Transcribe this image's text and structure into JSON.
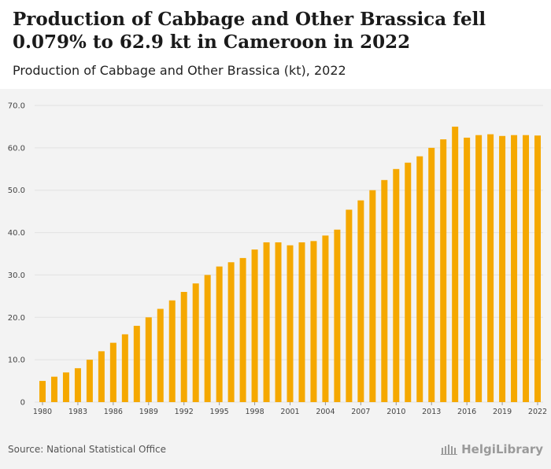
{
  "header": {
    "title": "Production of Cabbage and Other Brassica fell 0.079% to 62.9 kt in Cameroon in 2022",
    "subtitle": "Production of Cabbage and Other Brassica (kt), 2022"
  },
  "footer": {
    "source": "Source: National Statistical Office",
    "brand": "HelgiLibrary"
  },
  "colors": {
    "bar": "#f5a800",
    "grid": "#e2e2e2",
    "axis_text": "#444444"
  },
  "chart_data": {
    "type": "bar",
    "categories": [
      "1980",
      "1981",
      "1982",
      "1983",
      "1984",
      "1985",
      "1986",
      "1987",
      "1988",
      "1989",
      "1990",
      "1991",
      "1992",
      "1993",
      "1994",
      "1995",
      "1996",
      "1997",
      "1998",
      "1999",
      "2000",
      "2001",
      "2002",
      "2003",
      "2004",
      "2005",
      "2006",
      "2007",
      "2008",
      "2009",
      "2010",
      "2011",
      "2012",
      "2013",
      "2014",
      "2015",
      "2016",
      "2017",
      "2018",
      "2019",
      "2020",
      "2021",
      "2022"
    ],
    "values": [
      5.0,
      6.0,
      7.0,
      8.0,
      10.0,
      12.0,
      14.0,
      16.0,
      18.0,
      20.0,
      22.0,
      24.0,
      26.0,
      28.0,
      30.0,
      32.0,
      33.0,
      34.0,
      36.0,
      37.7,
      37.7,
      37.0,
      37.7,
      38.0,
      39.3,
      40.7,
      45.4,
      47.6,
      50.0,
      52.4,
      55.0,
      56.5,
      58.0,
      60.0,
      62.0,
      65.0,
      62.4,
      63.0,
      63.2,
      62.8,
      63.0,
      63.0,
      62.9
    ],
    "x_tick_labels": [
      "1980",
      "1983",
      "1986",
      "1989",
      "1992",
      "1995",
      "1998",
      "2001",
      "2004",
      "2007",
      "2010",
      "2013",
      "2016",
      "2019",
      "2022"
    ],
    "y_tick_labels": [
      "0",
      "10.0",
      "20.0",
      "30.0",
      "40.0",
      "50.0",
      "60.0",
      "70.0"
    ],
    "y_ticks": [
      0,
      10,
      20,
      30,
      40,
      50,
      60,
      70
    ],
    "ylim": [
      0,
      70
    ],
    "grid": true,
    "legend": "none"
  }
}
